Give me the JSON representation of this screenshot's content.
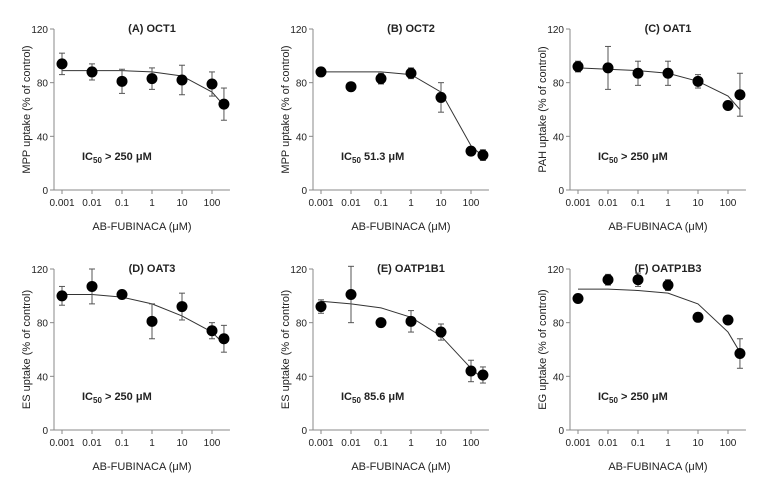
{
  "chart_data": [
    {
      "type": "scatter",
      "title": "(A) OCT1",
      "ylabel": "MPP uptake (% of control)",
      "xlabel": "AB-FUBINACA (μM)",
      "ic50": "IC50 > 250 μM",
      "ic50_parts": [
        "IC",
        "50",
        " > 250 μM"
      ],
      "x": [
        0.001,
        0.01,
        0.1,
        1,
        10,
        100,
        250
      ],
      "y": [
        94,
        88,
        81,
        83,
        82,
        79,
        64
      ],
      "err": [
        8,
        6,
        9,
        8,
        11,
        9,
        12
      ],
      "fit": [
        89,
        89,
        89,
        88,
        85,
        73,
        63
      ]
    },
    {
      "type": "scatter",
      "title": "(B) OCT2",
      "ylabel": "MPP uptake (% of control)",
      "xlabel": "AB-FUBINACA (μM)",
      "ic50": "IC50 51.3 μM",
      "ic50_parts": [
        "IC",
        "50",
        " 51.3 μM"
      ],
      "x": [
        0.001,
        0.01,
        0.1,
        1,
        10,
        100,
        250
      ],
      "y": [
        88,
        77,
        83,
        87,
        69,
        29,
        26
      ],
      "err": [
        0,
        0,
        4,
        4,
        11,
        0,
        4
      ],
      "fit": [
        88,
        88,
        88,
        86,
        73,
        33,
        25
      ]
    },
    {
      "type": "scatter",
      "title": "(C) OAT1",
      "ylabel": "PAH uptake (% of control)",
      "xlabel": "AB-FUBINACA (μM)",
      "ic50": "IC50 > 250 μM",
      "ic50_parts": [
        "IC",
        "50",
        " > 250 μM"
      ],
      "x": [
        0.001,
        0.01,
        0.1,
        1,
        10,
        100,
        250
      ],
      "y": [
        92,
        91,
        87,
        87,
        81,
        63,
        71
      ],
      "err": [
        4,
        16,
        9,
        9,
        5,
        0,
        16
      ],
      "fit": [
        91,
        90,
        89,
        87,
        81,
        70,
        60
      ]
    },
    {
      "type": "scatter",
      "title": "(D) OAT3",
      "ylabel": "ES uptake (% of control)",
      "xlabel": "AB-FUBINACA (μM)",
      "ic50": "IC50 > 250 μM",
      "ic50_parts": [
        "IC",
        "50",
        " > 250 μM"
      ],
      "x": [
        0.001,
        0.01,
        0.1,
        1,
        10,
        100,
        250
      ],
      "y": [
        100,
        107,
        101,
        81,
        92,
        74,
        68
      ],
      "err": [
        7,
        13,
        0,
        13,
        10,
        6,
        10
      ],
      "fit": [
        101,
        101,
        99,
        94,
        85,
        73,
        64
      ]
    },
    {
      "type": "scatter",
      "title": "(E) OATP1B1",
      "ylabel": "ES uptake (% of control)",
      "xlabel": "AB-FUBINACA (μM)",
      "ic50": "IC50 85.6 μM",
      "ic50_parts": [
        "IC",
        "50",
        " 85.6 μM"
      ],
      "x": [
        0.001,
        0.01,
        0.1,
        1,
        10,
        100,
        250
      ],
      "y": [
        92,
        101,
        80,
        81,
        73,
        44,
        41
      ],
      "err": [
        5,
        21,
        0,
        8,
        6,
        8,
        6
      ],
      "fit": [
        96,
        94,
        91,
        84,
        70,
        46,
        38
      ]
    },
    {
      "type": "scatter",
      "title": "(F) OATP1B3",
      "ylabel": "EG uptake (% of control)",
      "xlabel": "AB-FUBINACA (μM)",
      "ic50": "IC50 > 250 μM",
      "ic50_parts": [
        "IC",
        "50",
        " > 250 μM"
      ],
      "x": [
        0.001,
        0.01,
        0.1,
        1,
        10,
        100,
        250
      ],
      "y": [
        98,
        112,
        112,
        108,
        84,
        82,
        57
      ],
      "err": [
        0,
        4,
        5,
        4,
        0,
        0,
        11
      ],
      "fit": [
        105,
        105,
        104,
        102,
        94,
        73,
        58
      ]
    }
  ],
  "axes": {
    "ylim": [
      0,
      120
    ],
    "yticks": [
      "0",
      "40",
      "80",
      "120"
    ],
    "xticks": [
      "0.001",
      "0.01",
      "0.1",
      "1",
      "10",
      "100"
    ],
    "xscale": "log"
  },
  "colors": {
    "marker": "#000000",
    "line": "#333333",
    "axis": "#888888"
  }
}
